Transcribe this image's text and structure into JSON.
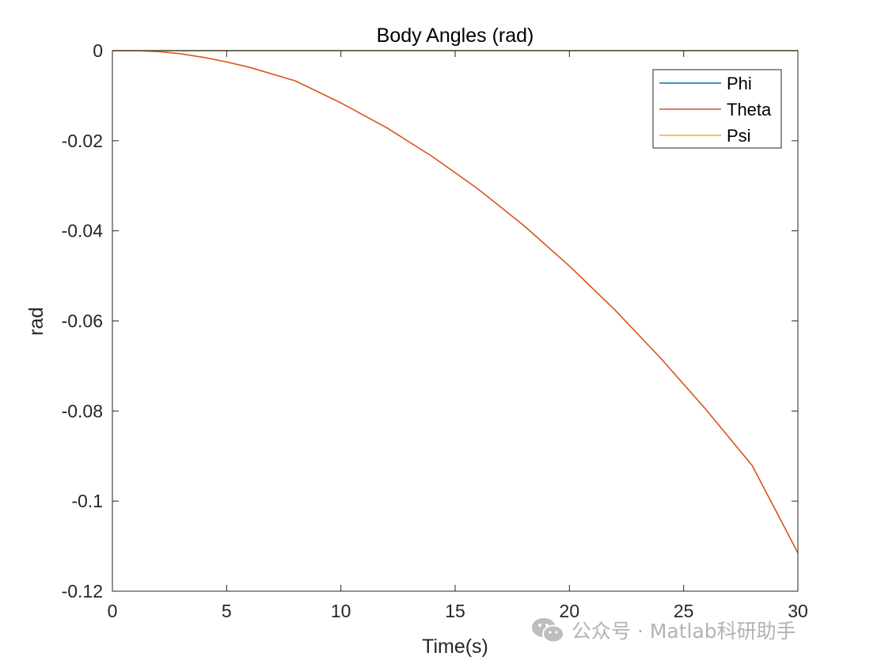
{
  "chart_data": {
    "type": "line",
    "title": "Body Angles (rad)",
    "xlabel": "Time(s)",
    "ylabel": "rad",
    "xlim": [
      0,
      30
    ],
    "ylim": [
      -0.12,
      0
    ],
    "xticks": [
      0,
      5,
      10,
      15,
      20,
      25,
      30
    ],
    "xtick_labels": [
      "0",
      "5",
      "10",
      "15",
      "20",
      "25",
      "30"
    ],
    "yticks": [
      0,
      -0.02,
      -0.04,
      -0.06,
      -0.08,
      -0.1,
      -0.12
    ],
    "ytick_labels": [
      "0",
      "-0.02",
      "-0.04",
      "-0.06",
      "-0.08",
      "-0.1",
      "-0.12"
    ],
    "grid": false,
    "legend_position": "top-right",
    "series": [
      {
        "name": "Phi",
        "color": "#0072BD",
        "x": [
          0,
          30
        ],
        "y": [
          0,
          0
        ]
      },
      {
        "name": "Theta",
        "color": "#D95319",
        "x": [
          0,
          1,
          2,
          3,
          4,
          5,
          6,
          8,
          10,
          12,
          14,
          16,
          18,
          20,
          22,
          24,
          26,
          28,
          30
        ],
        "y": [
          0,
          0,
          -0.0002,
          -0.0007,
          -0.0015,
          -0.0025,
          -0.0037,
          -0.0067,
          -0.0116,
          -0.0171,
          -0.0235,
          -0.0307,
          -0.0388,
          -0.0478,
          -0.0576,
          -0.0683,
          -0.0798,
          -0.0921,
          -0.1115
        ]
      },
      {
        "name": "Psi",
        "color": "#EDB120",
        "x": [
          0,
          30
        ],
        "y": [
          0,
          0
        ]
      }
    ]
  },
  "watermark": {
    "icon": "wechat-icon",
    "text": "公众号 · Matlab科研助手"
  }
}
